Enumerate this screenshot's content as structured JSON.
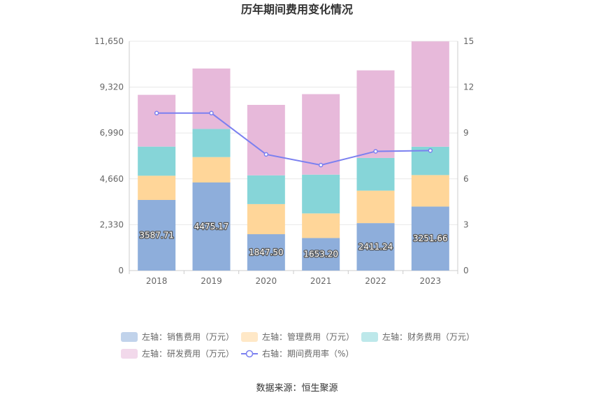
{
  "chart_data": {
    "type": "bar",
    "stacked": true,
    "title": "历年期间费用变化情况",
    "categories": [
      "2018",
      "2019",
      "2020",
      "2021",
      "2022",
      "2023"
    ],
    "series": [
      {
        "name": "左轴：销售费用（万元）",
        "axis": "left",
        "color": "#8eaedb",
        "values": [
          3587.71,
          4475.17,
          1847.5,
          1653.2,
          2411.24,
          3251.66
        ]
      },
      {
        "name": "左轴：管理费用（万元）",
        "axis": "left",
        "color": "#ffd699",
        "values": [
          1230,
          1290,
          1530,
          1250,
          1650,
          1600
        ]
      },
      {
        "name": "左轴：财务费用（万元）",
        "axis": "left",
        "color": "#86d5d8",
        "values": [
          1480,
          1430,
          1460,
          1970,
          1660,
          1440
        ]
      },
      {
        "name": "左轴：研发费用（万元）",
        "axis": "left",
        "color": "#e7b9da",
        "values": [
          2630,
          3070,
          3580,
          4090,
          4450,
          5350
        ]
      },
      {
        "name": "右轴：期间费用率（%）",
        "axis": "right",
        "type": "line",
        "color": "#7b80f0",
        "values": [
          10.3,
          10.3,
          7.6,
          6.9,
          7.8,
          7.85
        ]
      }
    ],
    "bar_labels": [
      "3587.71",
      "4475.17",
      "1847.50",
      "1653.20",
      "2411.24",
      "3251.66"
    ],
    "left_axis": {
      "ylim": [
        0,
        11650
      ],
      "ticks": [
        "0",
        "2,330",
        "4,660",
        "6,990",
        "9,320",
        "11,650"
      ]
    },
    "right_axis": {
      "ylim": [
        0,
        15
      ],
      "ticks": [
        "0",
        "3",
        "6",
        "9",
        "12",
        "15"
      ]
    },
    "grid": true,
    "legend_position": "bottom"
  },
  "source": "数据来源：恒生聚源"
}
